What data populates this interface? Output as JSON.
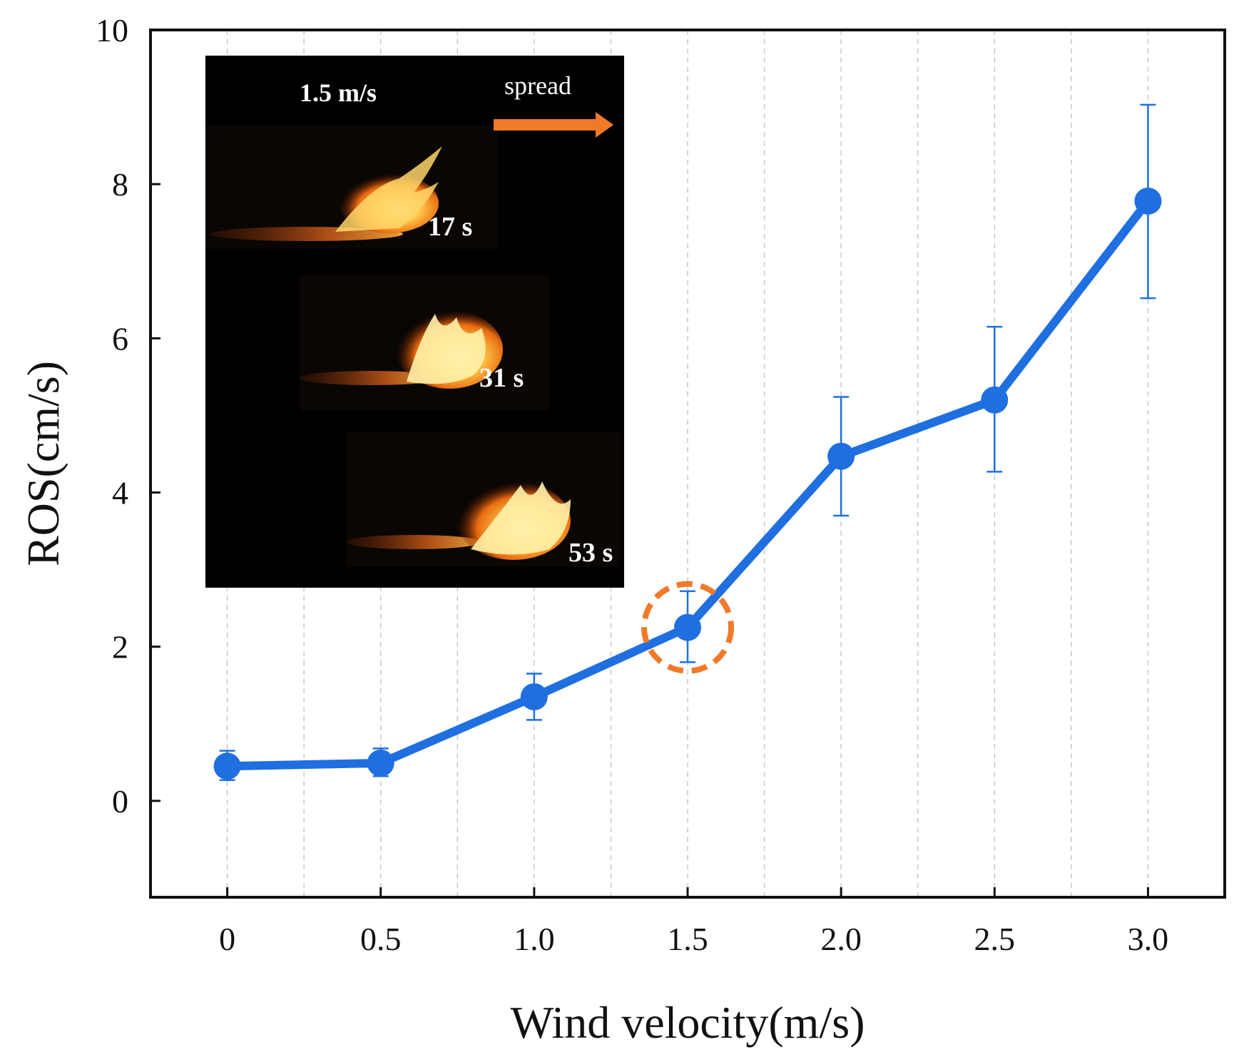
{
  "chart_data": {
    "type": "line",
    "title": "",
    "xlabel": "Wind velocity(m/s)",
    "ylabel": "ROS(cm/s)",
    "xlim": [
      -0.25,
      3.25
    ],
    "ylim": [
      -1.25,
      10
    ],
    "x": [
      0,
      0.5,
      1.0,
      1.5,
      2.0,
      2.5,
      3.0
    ],
    "x_tick_labels": [
      "0",
      "0.5",
      "1.0",
      "1.5",
      "2.0",
      "2.5",
      "3.0"
    ],
    "y_ticks": [
      0,
      2,
      4,
      6,
      8,
      10
    ],
    "y_tick_labels": [
      "0",
      "2",
      "4",
      "6",
      "8",
      "10"
    ],
    "grid": "vertical dashed",
    "series": [
      {
        "name": "ROS",
        "color": "#1f6fe0",
        "values": [
          0.45,
          0.49,
          1.35,
          2.25,
          4.47,
          5.2,
          7.78
        ],
        "error_low": [
          0.27,
          0.32,
          1.05,
          1.8,
          3.7,
          4.27,
          6.52
        ],
        "error_high": [
          0.65,
          0.68,
          1.65,
          2.72,
          5.24,
          6.15,
          9.03
        ]
      }
    ],
    "highlight": {
      "x": 1.5,
      "y": 2.25,
      "color": "#f07a2a",
      "style": "dashed circle"
    },
    "inset": {
      "wind_label": "1.5 m/s",
      "direction_label": "spread",
      "arrow_color": "#f07a2a",
      "frames": [
        "17 s",
        "31 s",
        "53 s"
      ]
    }
  }
}
